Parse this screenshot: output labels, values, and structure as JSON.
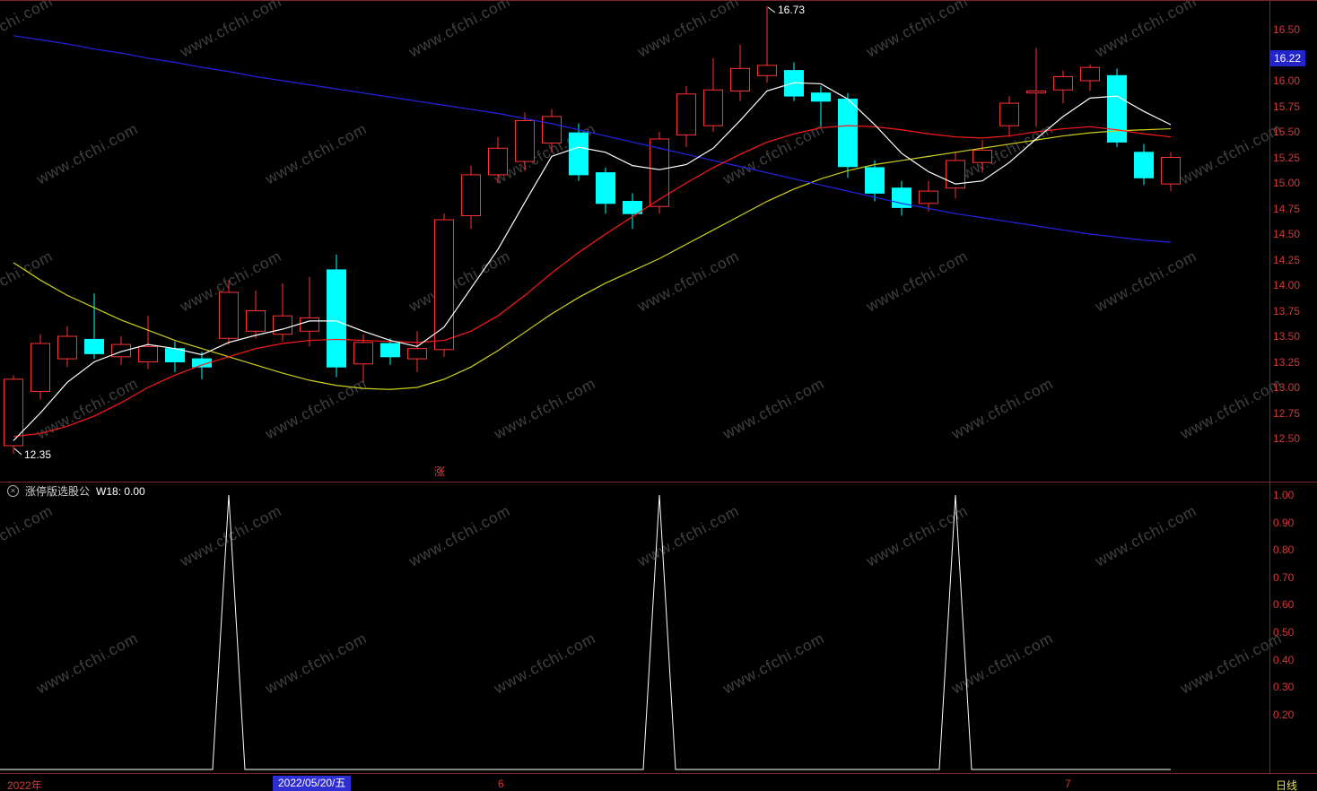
{
  "watermark": {
    "text": "www.cfchi.com"
  },
  "colors": {
    "up": "#ff3434",
    "down": "#00ffff",
    "background": "#000000",
    "axis_text": "#cf3a3a",
    "tag_bg": "#2424cc"
  },
  "chart_data": [
    {
      "type": "candlestick",
      "title": "",
      "ylim": [
        12.3,
        16.8
      ],
      "y_ticks": [
        "16.50",
        "16.25",
        "16.00",
        "15.75",
        "15.50",
        "15.25",
        "15.00",
        "14.75",
        "14.50",
        "14.25",
        "14.00",
        "13.75",
        "13.50",
        "13.25",
        "13.00",
        "12.75",
        "12.50"
      ],
      "x_ticks": [
        "2022年",
        "2022/05/20/五",
        "6",
        "7"
      ],
      "candles": [
        [
          12.43,
          13.12,
          12.35,
          13.08
        ],
        [
          12.96,
          13.52,
          12.88,
          13.43
        ],
        [
          13.28,
          13.6,
          13.2,
          13.5
        ],
        [
          13.47,
          13.92,
          13.28,
          13.33
        ],
        [
          13.3,
          13.5,
          13.22,
          13.42
        ],
        [
          13.25,
          13.7,
          13.18,
          13.4
        ],
        [
          13.38,
          13.45,
          13.15,
          13.25
        ],
        [
          13.28,
          13.35,
          13.08,
          13.2
        ],
        [
          13.48,
          14.05,
          13.42,
          13.93
        ],
        [
          13.55,
          13.95,
          13.48,
          13.75
        ],
        [
          13.52,
          14.02,
          13.45,
          13.7
        ],
        [
          13.55,
          14.08,
          13.4,
          13.68
        ],
        [
          14.15,
          14.3,
          13.1,
          13.2
        ],
        [
          13.23,
          13.52,
          13.05,
          13.44
        ],
        [
          13.43,
          13.48,
          13.22,
          13.3
        ],
        [
          13.28,
          13.55,
          13.15,
          13.38
        ],
        [
          13.37,
          14.7,
          13.3,
          14.64
        ],
        [
          14.68,
          15.17,
          14.55,
          15.08
        ],
        [
          15.08,
          15.45,
          15.0,
          15.34
        ],
        [
          15.21,
          15.69,
          15.12,
          15.61
        ],
        [
          15.39,
          15.72,
          15.3,
          15.65
        ],
        [
          15.49,
          15.58,
          15.02,
          15.08
        ],
        [
          15.1,
          15.15,
          14.7,
          14.8
        ],
        [
          14.82,
          14.9,
          14.55,
          14.7
        ],
        [
          14.77,
          15.5,
          14.7,
          15.43
        ],
        [
          15.47,
          15.95,
          15.35,
          15.87
        ],
        [
          15.56,
          16.22,
          15.5,
          15.91
        ],
        [
          15.9,
          16.35,
          15.8,
          16.12
        ],
        [
          16.05,
          16.73,
          15.98,
          16.15
        ],
        [
          16.1,
          16.18,
          15.8,
          15.85
        ],
        [
          15.88,
          15.95,
          15.55,
          15.8
        ],
        [
          15.82,
          15.88,
          15.05,
          15.16
        ],
        [
          15.15,
          15.22,
          14.82,
          14.9
        ],
        [
          14.95,
          15.02,
          14.68,
          14.76
        ],
        [
          14.8,
          15.02,
          14.72,
          14.92
        ],
        [
          14.95,
          15.3,
          14.85,
          15.22
        ],
        [
          15.2,
          15.42,
          15.1,
          15.32
        ],
        [
          15.56,
          15.85,
          15.45,
          15.78
        ],
        [
          15.88,
          16.32,
          15.55,
          15.9
        ],
        [
          15.91,
          16.1,
          15.78,
          16.04
        ],
        [
          16.0,
          16.16,
          15.9,
          16.13
        ],
        [
          16.05,
          16.12,
          15.35,
          15.4
        ],
        [
          15.3,
          15.38,
          14.98,
          15.05
        ],
        [
          14.99,
          15.3,
          14.92,
          15.25
        ]
      ],
      "overlays": [
        {
          "name": "ma-yellow",
          "color": "#cfcf1a",
          "values": [
            14.22,
            14.05,
            13.9,
            13.78,
            13.66,
            13.56,
            13.46,
            13.38,
            13.3,
            13.22,
            13.14,
            13.07,
            13.02,
            12.99,
            12.98,
            13.0,
            13.08,
            13.2,
            13.36,
            13.54,
            13.72,
            13.88,
            14.02,
            14.14,
            14.26,
            14.4,
            14.54,
            14.68,
            14.82,
            14.94,
            15.04,
            15.12,
            15.18,
            15.22,
            15.26,
            15.3,
            15.34,
            15.38,
            15.42,
            15.46,
            15.49,
            15.51,
            15.52,
            15.53
          ]
        },
        {
          "name": "ma-blue",
          "color": "#2424e8",
          "values": [
            16.44,
            16.4,
            16.36,
            16.31,
            16.27,
            16.22,
            16.18,
            16.13,
            16.09,
            16.04,
            16.0,
            15.96,
            15.92,
            15.88,
            15.84,
            15.8,
            15.76,
            15.72,
            15.68,
            15.63,
            15.58,
            15.52,
            15.46,
            15.4,
            15.34,
            15.28,
            15.22,
            15.16,
            15.1,
            15.04,
            14.98,
            14.92,
            14.86,
            14.8,
            14.75,
            14.7,
            14.66,
            14.62,
            14.58,
            14.54,
            14.5,
            14.47,
            14.44,
            14.42
          ]
        },
        {
          "name": "ma-red",
          "color": "#ff1a1a",
          "values": [
            12.52,
            12.55,
            12.62,
            12.72,
            12.85,
            13.0,
            13.12,
            13.22,
            13.3,
            13.38,
            13.43,
            13.46,
            13.47,
            13.46,
            13.45,
            13.44,
            13.46,
            13.55,
            13.7,
            13.9,
            14.12,
            14.32,
            14.5,
            14.67,
            14.84,
            15.0,
            15.15,
            15.28,
            15.4,
            15.48,
            15.54,
            15.56,
            15.55,
            15.52,
            15.48,
            15.45,
            15.44,
            15.46,
            15.5,
            15.53,
            15.55,
            15.52,
            15.48,
            15.45
          ]
        },
        {
          "name": "ma-white",
          "color": "#ffffff",
          "values": [
            12.48,
            12.75,
            13.05,
            13.25,
            13.35,
            13.42,
            13.38,
            13.32,
            13.44,
            13.51,
            13.57,
            13.65,
            13.65,
            13.55,
            13.46,
            13.4,
            13.59,
            13.97,
            14.35,
            14.81,
            15.26,
            15.35,
            15.3,
            15.17,
            15.13,
            15.18,
            15.34,
            15.61,
            15.9,
            15.98,
            15.97,
            15.82,
            15.57,
            15.29,
            15.11,
            14.99,
            15.02,
            15.2,
            15.43,
            15.65,
            15.83,
            15.85,
            15.7,
            15.57
          ]
        }
      ],
      "annotations": {
        "high_label": "16.73",
        "low_label": "12.35",
        "event_marker": "涨",
        "last_price_tag": "16.22"
      }
    },
    {
      "type": "line",
      "name": "涨停版选股公",
      "param_label": "W18: 0.00",
      "ylim": [
        0.0,
        1.05
      ],
      "y_ticks": [
        "1.00",
        "0.90",
        "0.80",
        "0.70",
        "0.60",
        "0.50",
        "0.40",
        "0.30",
        "0.20"
      ],
      "base_value": 0.0,
      "signal_value": 1.0,
      "signal_indices": [
        8,
        24,
        35
      ]
    }
  ],
  "bottom_axis": {
    "year_label": "2022年",
    "selected_date": "2022/05/20/五",
    "month_labels": [
      "6",
      "7"
    ],
    "period_label": "日线"
  },
  "indicator_header": {
    "collapse_glyph": "×"
  }
}
